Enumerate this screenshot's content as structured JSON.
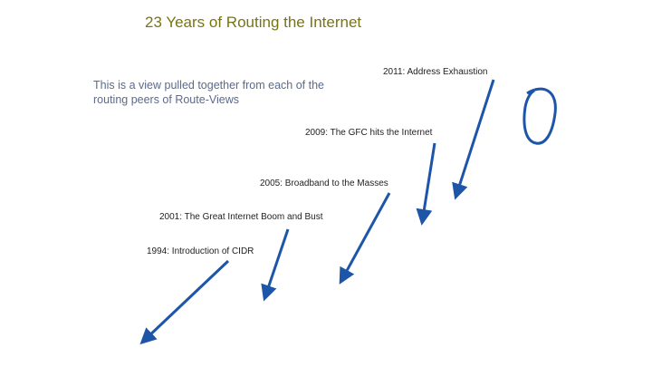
{
  "header": {
    "title": "23 Years of Routing the Internet"
  },
  "description": {
    "lines": [
      "This is a view pulled together from each of the",
      "routing peers of Route-Views"
    ]
  },
  "annotations": [
    {
      "label": "2011: Address Exhaustion"
    },
    {
      "label": "2009: The GFC hits the Internet"
    },
    {
      "label": "2005: Broadband to the Masses"
    },
    {
      "label": "2001: The Great Internet Boom and Bust"
    },
    {
      "label": "1994: Introduction of CIDR"
    }
  ]
}
